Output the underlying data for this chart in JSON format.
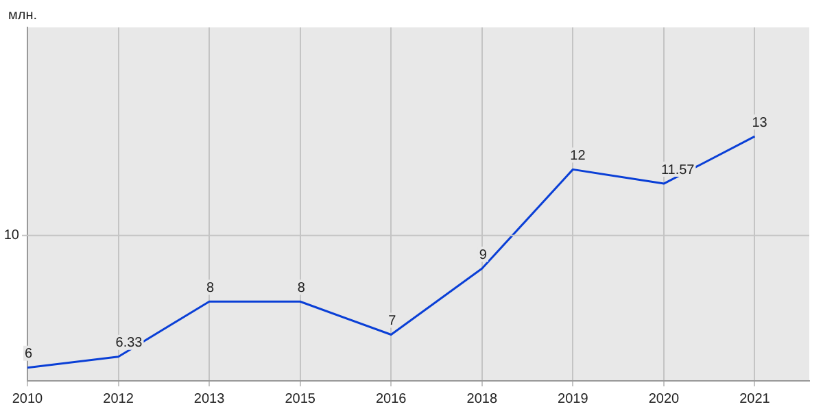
{
  "chart_data": {
    "type": "line",
    "ylabel": "млн.",
    "categories": [
      "2010",
      "2012",
      "2013",
      "2015",
      "2016",
      "2018",
      "2019",
      "2020",
      "2021"
    ],
    "series": [
      {
        "color": "#0a3fd6",
        "values": [
          6,
          6.33,
          8,
          8,
          7,
          9,
          12,
          11.57,
          13
        ]
      }
    ],
    "ylim": [
      5.6,
      16.3
    ],
    "ref_lines": [
      {
        "axis": "y",
        "value": 10,
        "label": "10",
        "color": "#c4c4c4"
      }
    ],
    "grid": "x",
    "data_labels": true,
    "legend": false,
    "marker": "none",
    "line_style": "solid"
  }
}
